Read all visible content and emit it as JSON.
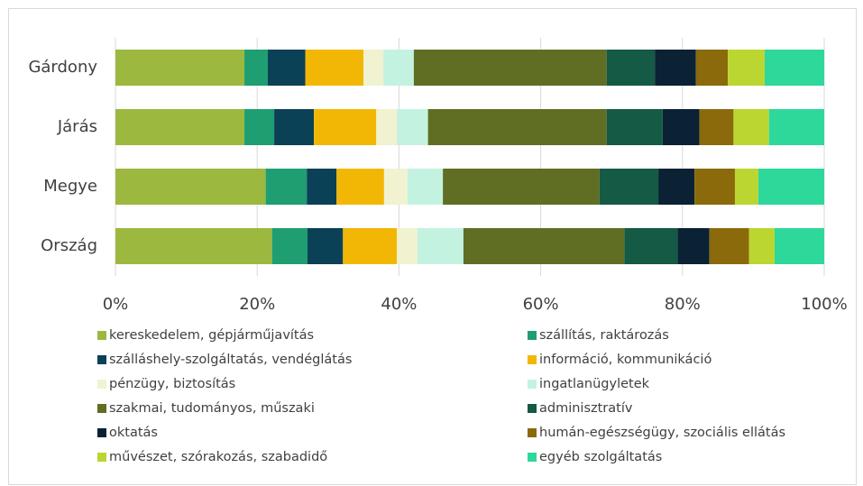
{
  "chart_data": {
    "type": "stacked-bar-horizontal",
    "categories": [
      "Gárdony",
      "Járás",
      "Megye",
      "Ország"
    ],
    "xlim": [
      0,
      100
    ],
    "xticks": [
      {
        "value": 0,
        "label": "0%"
      },
      {
        "value": 20,
        "label": "20%"
      },
      {
        "value": 40,
        "label": "40%"
      },
      {
        "value": 60,
        "label": "60%"
      },
      {
        "value": 80,
        "label": "80%"
      },
      {
        "value": 100,
        "label": "100%"
      }
    ],
    "grid": true,
    "legend": "bottom",
    "series": [
      {
        "name": "kereskedelem, gépjárműjavítás",
        "color": "#9cb83f",
        "values": [
          18.2,
          18.2,
          21.2,
          22.1
        ]
      },
      {
        "name": "szállítás, raktározás",
        "color": "#1f9e72",
        "values": [
          3.3,
          4.2,
          5.8,
          5.0
        ]
      },
      {
        "name": "szálláshely-szolgáltatás, vendéglátás",
        "color": "#0b4156",
        "values": [
          5.3,
          5.6,
          4.2,
          5.0
        ]
      },
      {
        "name": "információ, kommunikáció",
        "color": "#f2b705",
        "values": [
          8.2,
          8.8,
          6.7,
          7.6
        ]
      },
      {
        "name": "pénzügy, biztosítás",
        "color": "#f1f2cf",
        "values": [
          2.8,
          2.9,
          3.3,
          2.9
        ]
      },
      {
        "name": "ingatlanügyletek",
        "color": "#c4f2e0",
        "values": [
          4.3,
          4.4,
          5.0,
          6.5
        ]
      },
      {
        "name": "szakmai, tudományos, műszaki",
        "color": "#5f6e23",
        "values": [
          27.2,
          25.2,
          22.1,
          22.7
        ]
      },
      {
        "name": "adminisztratív",
        "color": "#145a45",
        "values": [
          6.8,
          7.9,
          8.3,
          7.5
        ]
      },
      {
        "name": "oktatás",
        "color": "#0a2233",
        "values": [
          5.8,
          5.2,
          5.1,
          4.5
        ]
      },
      {
        "name": "humán-egészségügy, szociális ellátás",
        "color": "#8a6a0a",
        "values": [
          4.5,
          4.8,
          5.7,
          5.6
        ]
      },
      {
        "name": "művészet, szórakozás, szabadidő",
        "color": "#bcd631",
        "values": [
          5.2,
          5.0,
          3.3,
          3.6
        ]
      },
      {
        "name": "egyéb szolgáltatás",
        "color": "#2ed89a",
        "values": [
          8.4,
          7.8,
          9.3,
          7.0
        ]
      }
    ]
  }
}
